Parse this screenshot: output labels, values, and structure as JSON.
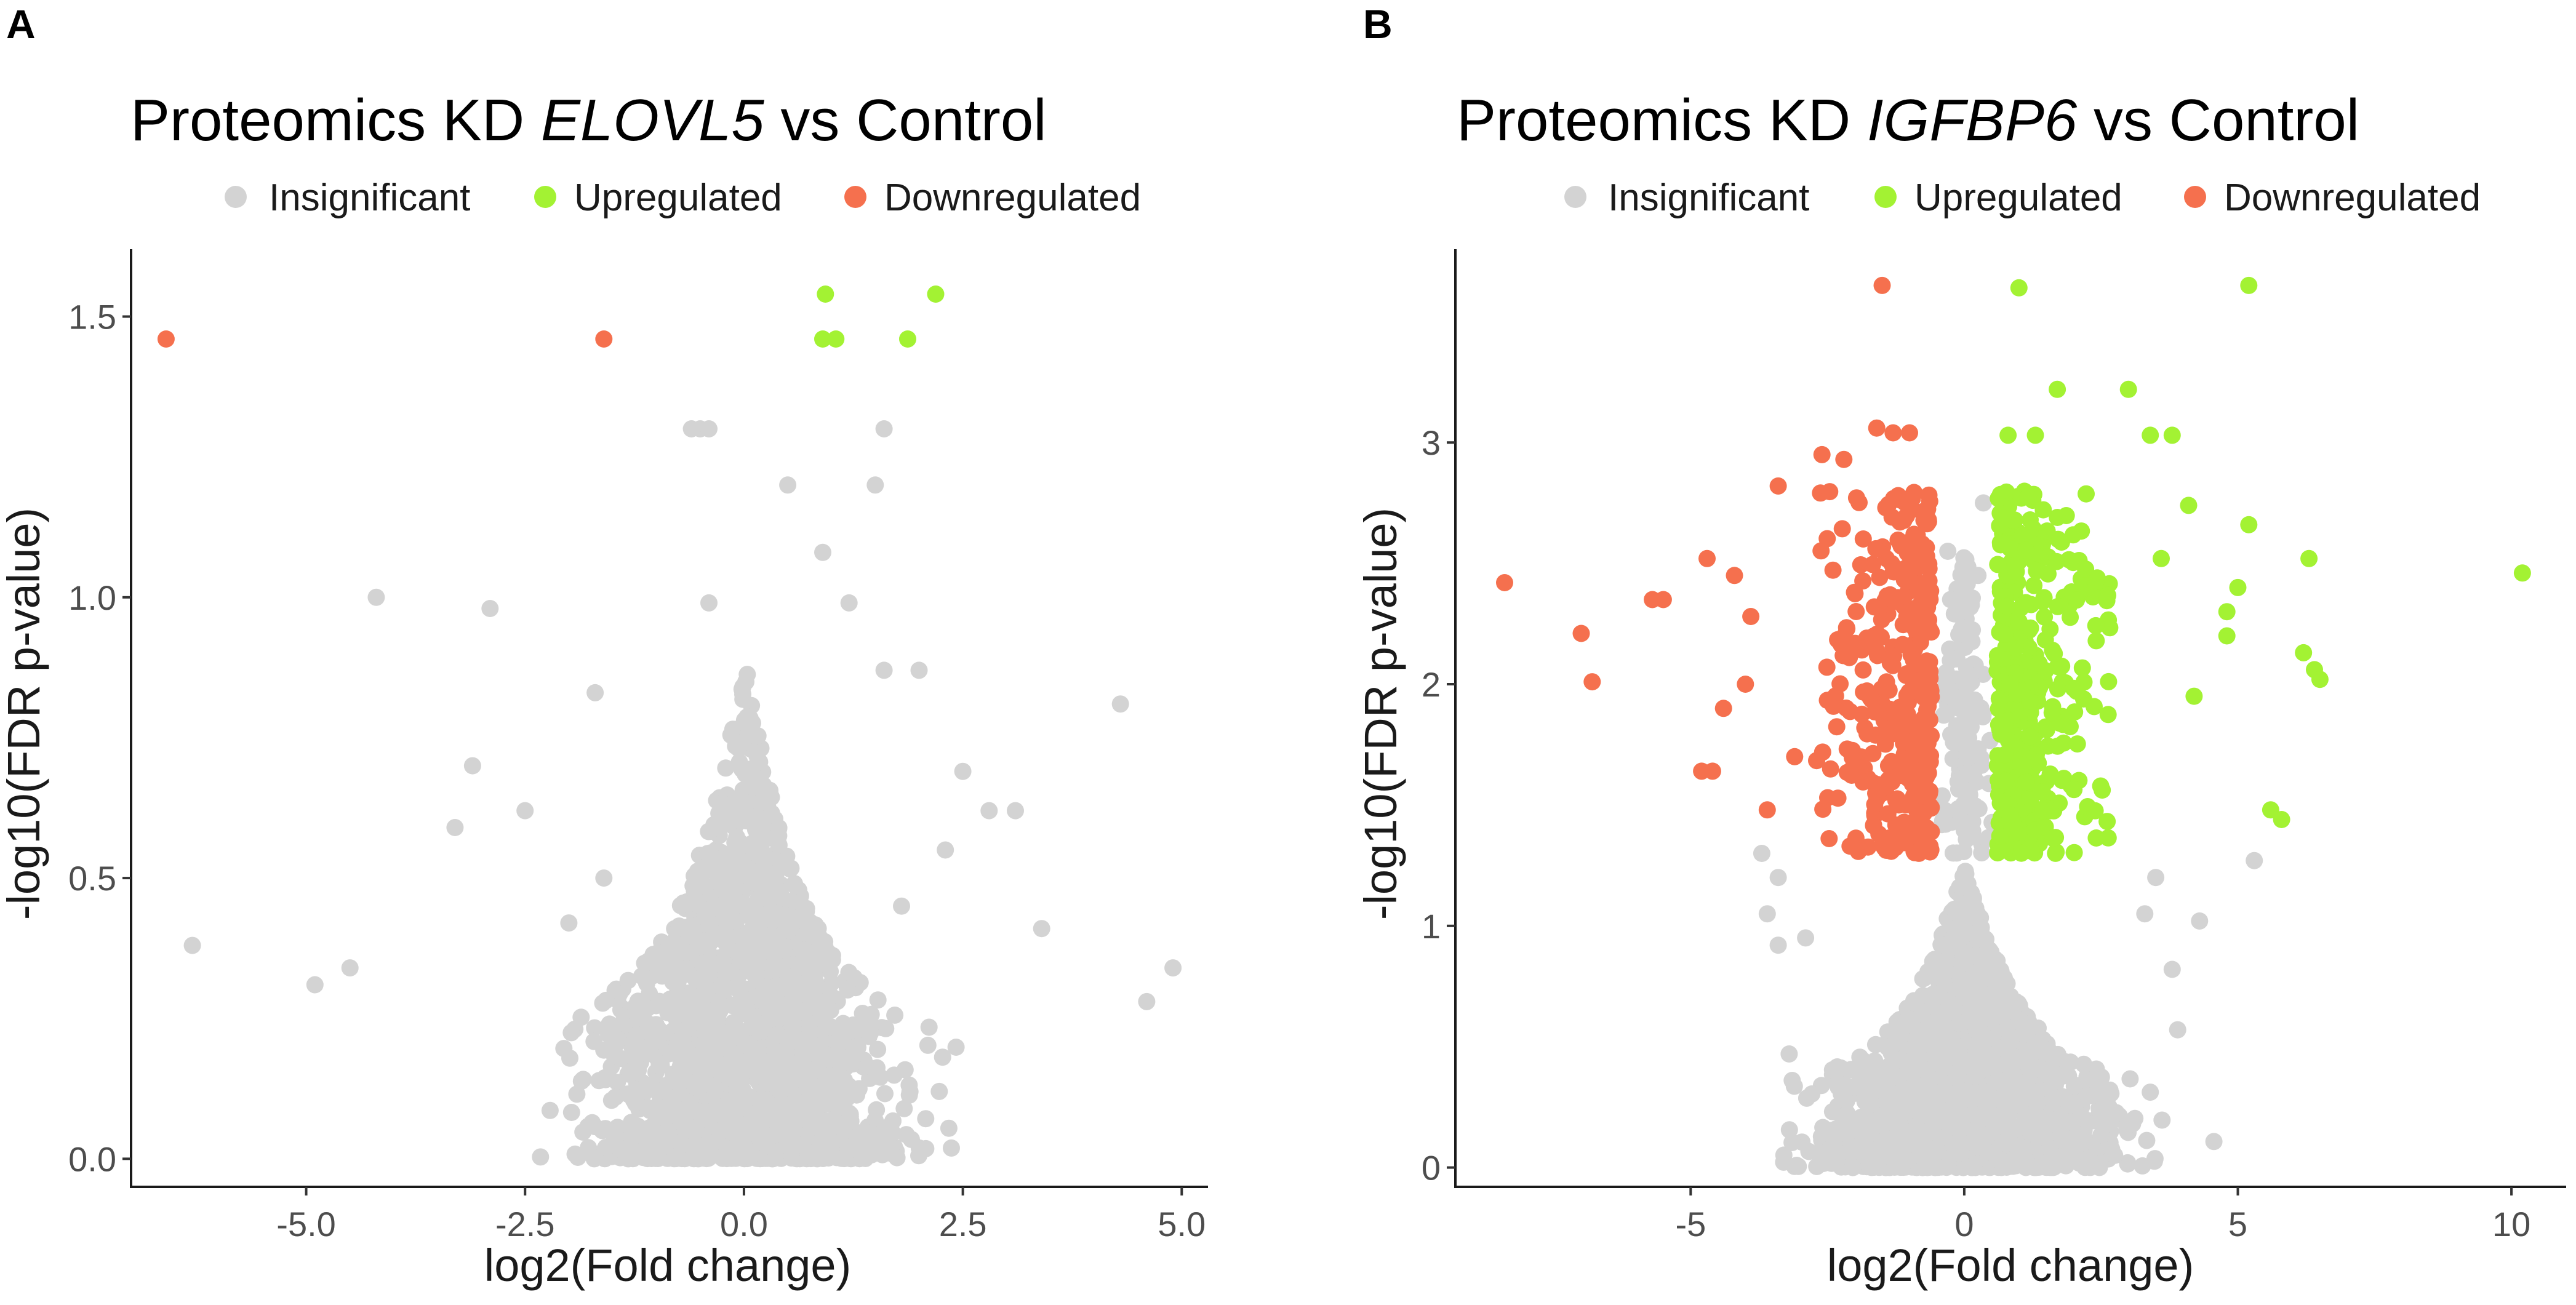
{
  "figure": {
    "panels": [
      "A",
      "B"
    ]
  },
  "colors": {
    "insignificant": "#d3d3d3",
    "upregulated": "#a3f233",
    "downregulated": "#f5704e",
    "axis": "#1a1a1a",
    "tick_text": "#4d4d4d"
  },
  "chart_data": [
    {
      "panel": "A",
      "type": "scatter",
      "title_prefix": "Proteomics KD ",
      "title_gene": "ELOVL5",
      "title_suffix": " vs Control",
      "xlabel": "log2(Fold change)",
      "ylabel": "-log10(FDR p-value)",
      "xlim": [
        -7.0,
        5.3
      ],
      "ylim": [
        -0.05,
        1.62
      ],
      "xticks": [
        -5.0,
        -2.5,
        0.0,
        2.5,
        5.0
      ],
      "xtick_labels": [
        "-5.0",
        "-2.5",
        "0.0",
        "2.5",
        "5.0"
      ],
      "yticks": [
        0.0,
        0.5,
        1.0,
        1.5
      ],
      "ytick_labels": [
        "0.0",
        "0.5",
        "1.0",
        "1.5"
      ],
      "grid": false,
      "legend": {
        "position": "top",
        "entries": [
          "Insignificant",
          "Upregulated",
          "Downregulated"
        ]
      },
      "series": [
        {
          "name": "Upregulated",
          "points": [
            [
              0.93,
              1.54
            ],
            [
              2.19,
              1.54
            ],
            [
              0.9,
              1.46
            ],
            [
              1.05,
              1.46
            ],
            [
              1.87,
              1.46
            ]
          ]
        },
        {
          "name": "Downregulated",
          "points": [
            [
              -6.6,
              1.46
            ],
            [
              -1.6,
              1.46
            ]
          ]
        },
        {
          "name": "Insignificant",
          "points": [
            [
              -0.6,
              1.3
            ],
            [
              -0.5,
              1.3
            ],
            [
              -0.4,
              1.3
            ],
            [
              1.6,
              1.3
            ],
            [
              0.5,
              1.2
            ],
            [
              1.5,
              1.2
            ],
            [
              0.9,
              1.08
            ],
            [
              -4.2,
              1.0
            ],
            [
              -2.9,
              0.98
            ],
            [
              -0.4,
              0.99
            ],
            [
              1.2,
              0.99
            ],
            [
              4.3,
              0.81
            ],
            [
              1.6,
              0.87
            ],
            [
              2.0,
              0.87
            ],
            [
              -1.7,
              0.83
            ],
            [
              -3.1,
              0.7
            ],
            [
              -3.3,
              0.59
            ],
            [
              -2.5,
              0.62
            ],
            [
              2.5,
              0.69
            ],
            [
              2.8,
              0.62
            ],
            [
              3.1,
              0.62
            ],
            [
              2.3,
              0.55
            ],
            [
              -6.3,
              0.38
            ],
            [
              -4.5,
              0.34
            ],
            [
              -4.9,
              0.31
            ],
            [
              4.9,
              0.34
            ],
            [
              4.6,
              0.28
            ],
            [
              3.4,
              0.41
            ],
            [
              -1.6,
              0.5
            ],
            [
              -2.0,
              0.42
            ],
            [
              1.8,
              0.45
            ]
          ],
          "cloud": {
            "count": 1900,
            "x_center": 0.0,
            "x_sd": 0.75,
            "y_max": 0.9,
            "seed": 17
          }
        }
      ]
    },
    {
      "panel": "B",
      "type": "scatter",
      "title_prefix": "Proteomics KD ",
      "title_gene": "IGFBP6",
      "title_suffix": " vs Control",
      "xlabel": "log2(Fold change)",
      "ylabel": "-log10(FDR p-value)",
      "xlim": [
        -9.3,
        11.0
      ],
      "ylim": [
        -0.08,
        3.8
      ],
      "xticks": [
        -5,
        0,
        5,
        10
      ],
      "xtick_labels": [
        "-5",
        "0",
        "5",
        "10"
      ],
      "yticks": [
        0,
        1,
        2,
        3
      ],
      "ytick_labels": [
        "0",
        "1",
        "2",
        "3"
      ],
      "grid": false,
      "legend": {
        "position": "top",
        "entries": [
          "Insignificant",
          "Upregulated",
          "Downregulated"
        ]
      },
      "series": [
        {
          "name": "Upregulated",
          "points": [
            [
              1.0,
              3.64
            ],
            [
              5.2,
              3.65
            ],
            [
              1.7,
              3.22
            ],
            [
              3.0,
              3.22
            ],
            [
              0.8,
              3.03
            ],
            [
              1.3,
              3.03
            ],
            [
              3.4,
              3.03
            ],
            [
              3.8,
              3.03
            ],
            [
              10.2,
              2.46
            ],
            [
              6.3,
              2.52
            ],
            [
              6.4,
              2.06
            ],
            [
              6.5,
              2.02
            ],
            [
              6.2,
              2.13
            ],
            [
              5.6,
              1.48
            ],
            [
              5.8,
              1.44
            ],
            [
              5.0,
              2.4
            ],
            [
              4.8,
              2.3
            ],
            [
              4.8,
              2.2
            ],
            [
              5.2,
              2.66
            ],
            [
              4.1,
              2.74
            ],
            [
              3.6,
              2.52
            ],
            [
              4.2,
              1.95
            ]
          ],
          "cloud": {
            "count": 380,
            "x_min": 0.6,
            "x_max": 4.2,
            "x_decay": 1.3,
            "y_min": 1.3,
            "y_max": 2.8,
            "seed": 29
          }
        },
        {
          "name": "Downregulated",
          "points": [
            [
              -1.5,
              3.65
            ],
            [
              -8.4,
              2.42
            ],
            [
              -7.0,
              2.21
            ],
            [
              -6.8,
              2.01
            ],
            [
              -5.7,
              2.35
            ],
            [
              -5.5,
              2.35
            ],
            [
              -4.7,
              2.52
            ],
            [
              -3.4,
              2.82
            ],
            [
              -2.6,
              2.95
            ],
            [
              -2.2,
              2.93
            ],
            [
              -1.6,
              3.06
            ],
            [
              -1.3,
              3.04
            ],
            [
              -1.0,
              3.04
            ],
            [
              -4.6,
              1.64
            ],
            [
              -4.8,
              1.64
            ],
            [
              -3.6,
              1.48
            ],
            [
              -3.1,
              1.7
            ],
            [
              -4.4,
              1.9
            ],
            [
              -4.0,
              2.0
            ],
            [
              -3.9,
              2.28
            ],
            [
              -4.2,
              2.45
            ]
          ],
          "cloud": {
            "count": 380,
            "x_min": -4.2,
            "x_max": -0.6,
            "x_decay": 1.3,
            "y_min": 1.3,
            "y_max": 2.8,
            "seed": 31
          }
        },
        {
          "name": "Insignificant",
          "points": [
            [
              -3.7,
              1.3
            ],
            [
              -3.4,
              1.2
            ],
            [
              -3.6,
              1.05
            ],
            [
              -3.4,
              0.92
            ],
            [
              -2.9,
              0.95
            ],
            [
              -3.2,
              0.47
            ],
            [
              3.5,
              1.2
            ],
            [
              3.3,
              1.05
            ],
            [
              3.8,
              0.82
            ],
            [
              3.9,
              0.57
            ],
            [
              4.3,
              1.02
            ],
            [
              -0.3,
              2.55
            ],
            [
              0.35,
              2.75
            ],
            [
              -0.25,
              2.35
            ],
            [
              0.25,
              2.45
            ],
            [
              5.3,
              1.27
            ]
          ],
          "cloud": {
            "count": 2000,
            "x_center": 0.0,
            "x_sd": 1.15,
            "y_max": 1.28,
            "seed": 43,
            "spine": {
              "count": 150,
              "x_sd": 0.18,
              "y_min": 1.3,
              "y_max": 2.6
            }
          }
        }
      ]
    }
  ]
}
